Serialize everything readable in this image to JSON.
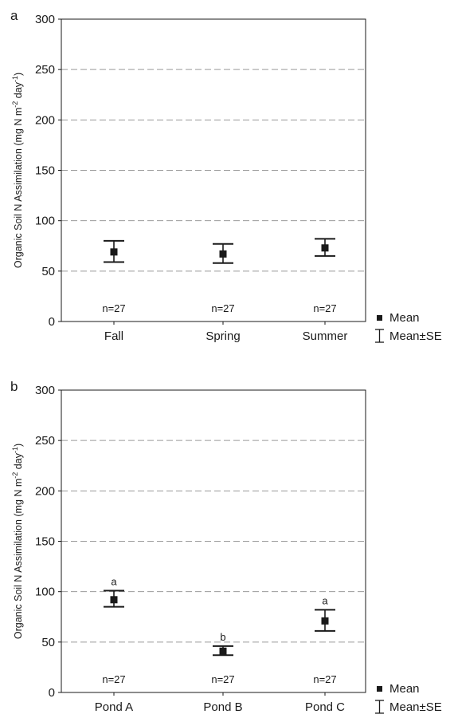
{
  "chart_data": [
    {
      "type": "scatter",
      "panel_label": "a",
      "ylabel": "Organic Soil N Assimilation (mg N m-2 day-1)",
      "ylabel_parts": {
        "main": "Organic Soil N Assimilation (mg N m",
        "sup1": "-2",
        "mid": " day",
        "sup2": "-1",
        "end": ")"
      },
      "ylim": [
        0,
        300
      ],
      "yticks": [
        "0",
        "50",
        "100",
        "150",
        "200",
        "250",
        "300"
      ],
      "grid": "dashed horizontal",
      "categories": [
        "Fall",
        "Spring",
        "Summer"
      ],
      "mean": [
        69,
        67,
        73
      ],
      "se_upper": [
        80,
        77,
        82
      ],
      "se_lower": [
        59,
        58,
        65
      ],
      "n_labels": [
        "n=27",
        "n=27",
        "n=27"
      ],
      "letters": [
        "",
        "",
        ""
      ],
      "legend": {
        "placement": "bottom-right",
        "mean": "Mean",
        "se": "Mean±SE"
      }
    },
    {
      "type": "scatter",
      "panel_label": "b",
      "ylabel": "Organic Soil N Assimilation (mg N m-2 day-1)",
      "ylabel_parts": {
        "main": "Organic Soil N Assimilation (mg N m",
        "sup1": "-2",
        "mid": " day",
        "sup2": "-1",
        "end": ")"
      },
      "ylim": [
        0,
        300
      ],
      "yticks": [
        "0",
        "50",
        "100",
        "150",
        "200",
        "250",
        "300"
      ],
      "grid": "dashed horizontal",
      "categories": [
        "Pond A",
        "Pond B",
        "Pond C"
      ],
      "mean": [
        92,
        41,
        71
      ],
      "se_upper": [
        101,
        46,
        82
      ],
      "se_lower": [
        85,
        37,
        61
      ],
      "n_labels": [
        "n=27",
        "n=27",
        "n=27"
      ],
      "letters": [
        "a",
        "b",
        "a"
      ],
      "legend": {
        "placement": "bottom-right",
        "mean": "Mean",
        "se": "Mean±SE"
      }
    }
  ],
  "style": {
    "ink": "#1a1a1a",
    "grid": "#9a9a9a"
  }
}
